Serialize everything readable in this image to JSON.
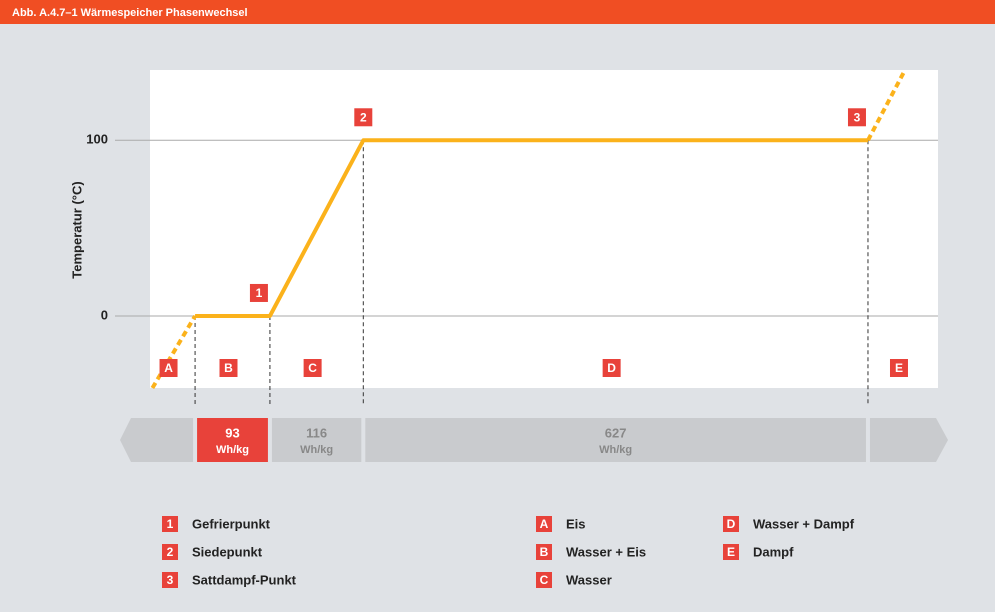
{
  "header": {
    "title": "Abb. A.4.7–1   Wärmespeicher Phasenwechsel"
  },
  "chart_data": {
    "type": "line",
    "y_label": "Temperatur  (°C)",
    "xlim": [
      -56,
      923
    ],
    "ylim": [
      -41,
      140
    ],
    "yticks": [
      0,
      100
    ],
    "grid": true,
    "color": "#fbb21b",
    "marker_color": "#e8423a",
    "x": [
      0,
      93,
      209,
      836
    ],
    "values": [
      0,
      0,
      100,
      100
    ],
    "extrapolation": {
      "x": [
        -53,
        0,
        null,
        836,
        882
      ],
      "values": [
        -41,
        0,
        null,
        100,
        140
      ]
    },
    "markers": [
      "1",
      "2",
      "3"
    ],
    "phases": [
      "A",
      "B",
      "C",
      "D",
      "E"
    ],
    "energy_band": [
      {
        "value": 93,
        "unit": "Wh/kg"
      },
      {
        "value": 116,
        "unit": "Wh/kg"
      },
      {
        "value": 627,
        "unit": "Wh/kg"
      }
    ]
  },
  "legend": {
    "points": [
      {
        "key": "1",
        "text": "Gefrierpunkt"
      },
      {
        "key": "2",
        "text": "Siedepunkt"
      },
      {
        "key": "3",
        "text": "Sattdampf-Punkt"
      }
    ],
    "phases": [
      {
        "key": "A",
        "text": "Eis"
      },
      {
        "key": "B",
        "text": "Wasser + Eis"
      },
      {
        "key": "C",
        "text": "Wasser"
      },
      {
        "key": "D",
        "text": "Wasser + Dampf"
      },
      {
        "key": "E",
        "text": "Dampf"
      }
    ]
  }
}
